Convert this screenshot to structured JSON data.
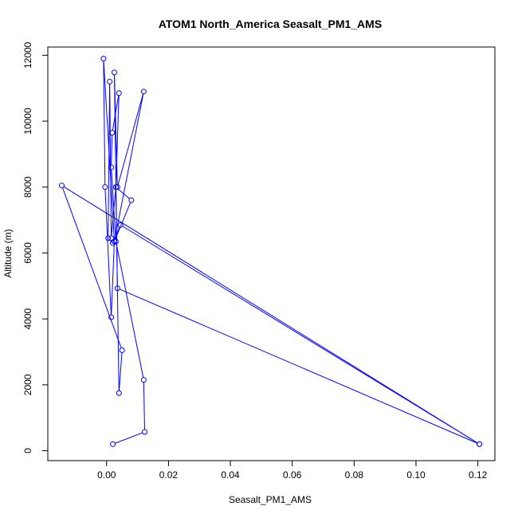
{
  "chart_data": {
    "type": "line",
    "title": "ATOM1 North_America Seasalt_PM1_AMS",
    "xlabel": "Seasalt_PM1_AMS",
    "ylabel": "Altitude (m)",
    "xlim": [
      -0.019,
      0.1255
    ],
    "ylim": [
      -300,
      12250
    ],
    "xticks": [
      0.0,
      0.02,
      0.04,
      0.06,
      0.08,
      0.1,
      0.12
    ],
    "xtick_labels": [
      "0.00",
      "0.02",
      "0.04",
      "0.06",
      "0.08",
      "0.10",
      "0.12"
    ],
    "yticks": [
      0,
      2000,
      4000,
      6000,
      8000,
      10000,
      12000
    ],
    "ytick_labels": [
      "0",
      "2000",
      "4000",
      "6000",
      "8000",
      "10000",
      "12000"
    ],
    "grid": false,
    "markers": "open-circle",
    "color": "#0000ff",
    "series": [
      {
        "points": [
          {
            "x": 0.002,
            "y": 200
          },
          {
            "x": 0.0123,
            "y": 570
          },
          {
            "x": 0.012,
            "y": 2150
          },
          {
            "x": 0.003,
            "y": 6350
          },
          {
            "x": 0.0015,
            "y": 8600
          },
          {
            "x": 0.0018,
            "y": 9650
          },
          {
            "x": 0.004,
            "y": 10850
          },
          {
            "x": 0.003,
            "y": 8000
          },
          {
            "x": 0.0015,
            "y": 6450
          },
          {
            "x": 0.001,
            "y": 11200
          },
          {
            "x": 0.0005,
            "y": 6450
          },
          {
            "x": 0.002,
            "y": 6300
          },
          {
            "x": 0.0045,
            "y": 6850
          },
          {
            "x": 0.1205,
            "y": 200
          },
          {
            "x": 0.0035,
            "y": 4930
          },
          {
            "x": 0.0025,
            "y": 11480
          },
          {
            "x": 0.0035,
            "y": 8000
          },
          {
            "x": 0.012,
            "y": 10900
          },
          {
            "x": 0.0025,
            "y": 6350
          },
          {
            "x": 0.0015,
            "y": 4050
          },
          {
            "x": -0.0005,
            "y": 8000
          },
          {
            "x": -0.001,
            "y": 11900
          },
          {
            "x": 0.0025,
            "y": 6350
          },
          {
            "x": 0.008,
            "y": 7600
          },
          {
            "x": 0.003,
            "y": 8000
          },
          {
            "x": 0.004,
            "y": 1750
          },
          {
            "x": 0.005,
            "y": 3050
          },
          {
            "x": -0.0145,
            "y": 8050
          },
          {
            "x": 0.1205,
            "y": 200
          }
        ]
      }
    ]
  }
}
